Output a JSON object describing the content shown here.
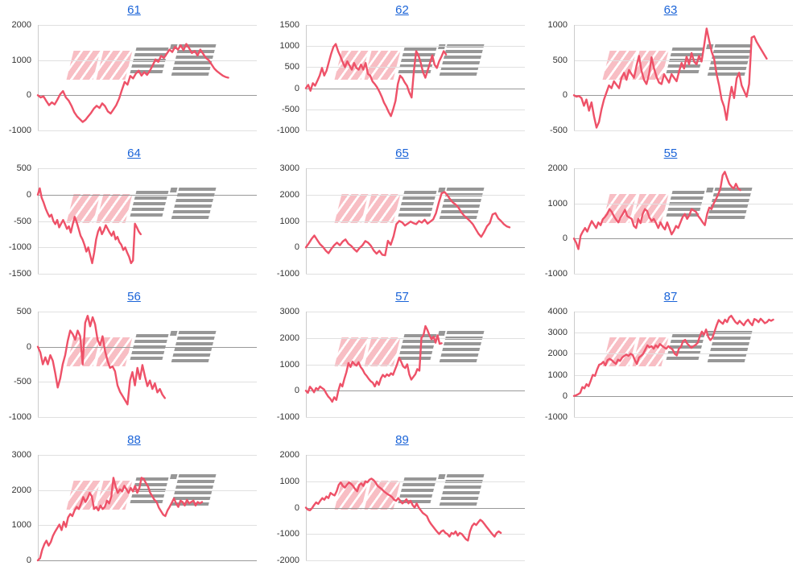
{
  "page": {
    "background": "#ffffff"
  },
  "colors": {
    "line": "#ee5168",
    "grid": "#e0e0e0",
    "zero_line": "#999999",
    "axis_line": "#cccccc",
    "link_blue": "#1b64d8",
    "tick_text": "#333333",
    "watermark_pink": "rgba(240,125,138,0.50)",
    "watermark_gray": "rgba(125,125,125,0.80)"
  },
  "watermark": {
    "text": "みんレポ"
  },
  "chart_data": [
    {
      "id": "61",
      "type": "line",
      "title": "61",
      "grid": true,
      "ylim": [
        -1000,
        2000
      ],
      "yticks": [
        2000,
        1000,
        0,
        -1000
      ],
      "x_end": 0.87,
      "values": [
        0,
        -60,
        -30,
        -160,
        -280,
        -200,
        -260,
        -120,
        30,
        120,
        -60,
        -150,
        -300,
        -480,
        -600,
        -680,
        -760,
        -700,
        -600,
        -500,
        -380,
        -300,
        -360,
        -230,
        -310,
        -460,
        -520,
        -400,
        -280,
        -100,
        150,
        380,
        300,
        550,
        480,
        620,
        700,
        560,
        660,
        580,
        700,
        850,
        1020,
        950,
        1120,
        1060,
        1180,
        1300,
        1230,
        1380,
        1300,
        1420,
        1280,
        1460,
        1340,
        1200,
        1260,
        1130,
        1300,
        1180,
        1060,
        1000,
        880,
        760,
        680,
        620,
        560,
        520,
        500
      ]
    },
    {
      "id": "62",
      "type": "line",
      "title": "62",
      "grid": true,
      "ylim": [
        -1000,
        1500
      ],
      "yticks": [
        1500,
        1000,
        500,
        0,
        -500,
        -1000
      ],
      "x_end": 0.64,
      "values": [
        0,
        80,
        -60,
        120,
        60,
        180,
        300,
        480,
        300,
        420,
        620,
        820,
        980,
        1050,
        880,
        760,
        620,
        500,
        640,
        540,
        440,
        600,
        480,
        440,
        560,
        440,
        600,
        340,
        300,
        160,
        100,
        20,
        -80,
        -200,
        -340,
        -440,
        -560,
        -660,
        -500,
        -300,
        100,
        300,
        240,
        140,
        60,
        -100,
        -220,
        400,
        880,
        780,
        600,
        380,
        250,
        420,
        600,
        780,
        560,
        480,
        640,
        750,
        880,
        800
      ]
    },
    {
      "id": "63",
      "type": "line",
      "title": "63",
      "grid": true,
      "ylim": [
        -500,
        1000
      ],
      "yticks": [
        1000,
        500,
        0,
        -500
      ],
      "x_end": 0.88,
      "values": [
        0,
        -20,
        -10,
        -40,
        -150,
        -60,
        -220,
        -100,
        -300,
        -460,
        -380,
        -200,
        -60,
        40,
        140,
        100,
        200,
        150,
        100,
        250,
        320,
        220,
        360,
        300,
        250,
        420,
        560,
        350,
        220,
        160,
        300,
        540,
        380,
        260,
        180,
        160,
        300,
        240,
        180,
        300,
        250,
        200,
        340,
        460,
        380,
        550,
        440,
        600,
        480,
        440,
        560,
        480,
        700,
        950,
        780,
        620,
        520,
        300,
        140,
        -60,
        -160,
        -350,
        -80,
        120,
        -40,
        240,
        320,
        140,
        60,
        -20,
        160,
        820,
        840,
        760,
        700,
        640,
        580,
        520
      ]
    },
    {
      "id": "64",
      "type": "line",
      "title": "64",
      "grid": true,
      "ylim": [
        -1500,
        500
      ],
      "yticks": [
        500,
        0,
        -500,
        -1000,
        -1500
      ],
      "x_end": 0.47,
      "values": [
        0,
        120,
        -60,
        -150,
        -260,
        -350,
        -420,
        -380,
        -500,
        -560,
        -480,
        -620,
        -550,
        -480,
        -560,
        -650,
        -600,
        -720,
        -560,
        -420,
        -520,
        -650,
        -780,
        -850,
        -950,
        -1080,
        -1000,
        -1150,
        -1300,
        -1100,
        -850,
        -700,
        -620,
        -750,
        -680,
        -580,
        -650,
        -720,
        -780,
        -700,
        -850,
        -800,
        -900,
        -950,
        -1050,
        -1000,
        -1100,
        -1180,
        -1300,
        -1250,
        -550,
        -620,
        -700,
        -750
      ]
    },
    {
      "id": "65",
      "type": "line",
      "title": "65",
      "grid": true,
      "ylim": [
        -1000,
        3000
      ],
      "yticks": [
        3000,
        2000,
        1000,
        0,
        -1000
      ],
      "x_end": 0.93,
      "values": [
        0,
        150,
        320,
        450,
        280,
        120,
        20,
        -120,
        -220,
        -60,
        80,
        180,
        80,
        220,
        300,
        140,
        60,
        -60,
        -160,
        -20,
        80,
        240,
        180,
        60,
        -120,
        -240,
        -130,
        -280,
        -300,
        250,
        100,
        420,
        880,
        1000,
        950,
        830,
        900,
        980,
        920,
        880,
        1000,
        940,
        1050,
        900,
        980,
        1060,
        1300,
        1700,
        2050,
        2100,
        1980,
        1820,
        1700,
        1620,
        1500,
        1320,
        1200,
        1100,
        1000,
        880,
        700,
        520,
        400,
        580,
        800,
        920,
        1250,
        1300,
        1100,
        1000,
        880,
        800,
        760
      ]
    },
    {
      "id": "55",
      "type": "line",
      "title": "55",
      "grid": true,
      "ylim": [
        -1000,
        2000
      ],
      "yticks": [
        2000,
        1000,
        0,
        -1000
      ],
      "x_end": 0.76,
      "values": [
        0,
        -120,
        -300,
        80,
        200,
        300,
        200,
        360,
        500,
        400,
        300,
        460,
        380,
        550,
        620,
        700,
        840,
        760,
        640,
        540,
        460,
        600,
        700,
        820,
        640,
        600,
        560,
        360,
        300,
        560,
        440,
        700,
        840,
        780,
        600,
        500,
        560,
        440,
        300,
        460,
        340,
        260,
        460,
        300,
        120,
        220,
        360,
        300,
        460,
        620,
        700,
        560,
        660,
        840,
        800,
        760,
        640,
        560,
        460,
        380,
        700,
        880,
        840,
        1000,
        1120,
        1260,
        1420,
        1800,
        1900,
        1720,
        1560,
        1480,
        1420,
        1560,
        1420,
        1380
      ]
    },
    {
      "id": "56",
      "type": "line",
      "title": "56",
      "grid": true,
      "ylim": [
        -1000,
        500
      ],
      "yticks": [
        500,
        0,
        -500,
        -1000
      ],
      "x_end": 0.58,
      "values": [
        0,
        -80,
        -250,
        -150,
        -250,
        -120,
        -200,
        -380,
        -580,
        -450,
        -250,
        -120,
        80,
        230,
        180,
        100,
        230,
        150,
        -250,
        340,
        440,
        290,
        420,
        320,
        100,
        20,
        150,
        -60,
        -200,
        -300,
        -280,
        -350,
        -550,
        -640,
        -700,
        -760,
        -820,
        -480,
        -360,
        -550,
        -300,
        -460,
        -260,
        -420,
        -560,
        -480,
        -600,
        -520,
        -650,
        -600,
        -680,
        -730
      ]
    },
    {
      "id": "57",
      "type": "line",
      "title": "57",
      "grid": true,
      "ylim": [
        -1000,
        3000
      ],
      "yticks": [
        3000,
        2000,
        1000,
        0,
        -1000
      ],
      "x_end": 0.62,
      "values": [
        0,
        -80,
        150,
        60,
        -60,
        100,
        40,
        160,
        100,
        40,
        -100,
        -220,
        -300,
        -420,
        -250,
        -350,
        0,
        260,
        160,
        450,
        700,
        1050,
        900,
        1100,
        1000,
        950,
        1080,
        900,
        800,
        650,
        560,
        450,
        360,
        300,
        160,
        350,
        220,
        460,
        600,
        520,
        620,
        560,
        660,
        600,
        800,
        1000,
        1250,
        1100,
        920,
        860,
        1000,
        620,
        420,
        520,
        620,
        820,
        760,
        2000,
        2100,
        2450,
        2300,
        2100,
        1950,
        2050,
        1820,
        2100,
        1780,
        1800
      ]
    },
    {
      "id": "87",
      "type": "line",
      "title": "87",
      "grid": true,
      "ylim": [
        -1000,
        4000
      ],
      "yticks": [
        4000,
        3000,
        2000,
        1000,
        0,
        -1000
      ],
      "x_end": 0.91,
      "values": [
        0,
        30,
        80,
        150,
        420,
        360,
        560,
        460,
        720,
        1000,
        950,
        1250,
        1480,
        1520,
        1620,
        1450,
        1700,
        1760,
        1700,
        1600,
        1520,
        1720,
        1660,
        1820,
        1900,
        1960,
        1900,
        2000,
        1940,
        1700,
        1520,
        1820,
        1900,
        2000,
        2200,
        2400,
        2300,
        2360,
        2240,
        2400,
        2300,
        2460,
        2380,
        2300,
        2240,
        2360,
        2280,
        2200,
        2000,
        1920,
        2240,
        2320,
        2600,
        2660,
        2480,
        2380,
        2280,
        2360,
        2420,
        2520,
        2820,
        3050,
        2900,
        3150,
        2800,
        2650,
        2750,
        3050,
        3350,
        3600,
        3500,
        3420,
        3620,
        3500,
        3720,
        3800,
        3650,
        3500,
        3420,
        3560,
        3450,
        3350,
        3520,
        3620,
        3460,
        3350,
        3650,
        3600,
        3500,
        3660,
        3560,
        3450,
        3500,
        3620,
        3560,
        3620
      ]
    },
    {
      "id": "88",
      "type": "line",
      "title": "88",
      "grid": true,
      "ylim": [
        0,
        3000
      ],
      "yticks": [
        3000,
        2000,
        1000,
        0
      ],
      "x_end": 0.75,
      "values": [
        0,
        60,
        300,
        460,
        560,
        420,
        520,
        700,
        820,
        920,
        1020,
        860,
        1100,
        950,
        1220,
        1320,
        1260,
        1420,
        1520,
        1460,
        1620,
        1800,
        1660,
        1760,
        1920,
        1820,
        1460,
        1520,
        1420,
        1560,
        1460,
        1520,
        1700,
        1620,
        1820,
        2350,
        2100,
        1920,
        2020,
        1960,
        2120,
        2020,
        1920,
        2060,
        1960,
        2120,
        1920,
        2060,
        2350,
        2320,
        2200,
        2100,
        1920,
        1820,
        1720,
        1660,
        1500,
        1400,
        1300,
        1260,
        1420,
        1520,
        1640,
        1760,
        1620,
        1520,
        1700,
        1660,
        1560,
        1720,
        1620,
        1660,
        1700,
        1560,
        1660,
        1620,
        1660
      ]
    },
    {
      "id": "89",
      "type": "line",
      "title": "89",
      "grid": true,
      "ylim": [
        -2000,
        2000
      ],
      "yticks": [
        2000,
        1000,
        0,
        -1000,
        -2000
      ],
      "x_end": 0.89,
      "values": [
        0,
        -80,
        -100,
        -20,
        100,
        200,
        140,
        260,
        360,
        300,
        420,
        360,
        560,
        500,
        460,
        620,
        860,
        960,
        820,
        760,
        860,
        960,
        900,
        820,
        700,
        620,
        860,
        920,
        820,
        1000,
        960,
        1060,
        1100,
        1040,
        950,
        820,
        760,
        700,
        620,
        560,
        500,
        460,
        400,
        300,
        260,
        360,
        260,
        160,
        220,
        320,
        160,
        260,
        100,
        0,
        160,
        0,
        -100,
        -200,
        -260,
        -320,
        -500,
        -620,
        -720,
        -820,
        -920,
        -1000,
        -900,
        -860,
        -960,
        -1000,
        -1100,
        -960,
        -1000,
        -900,
        -1060,
        -960,
        -1000,
        -1100,
        -1200,
        -1250,
        -900,
        -700,
        -600,
        -660,
        -560,
        -460,
        -520,
        -620,
        -720,
        -820,
        -920,
        -1020,
        -1100,
        -960,
        -900,
        -960
      ]
    }
  ]
}
